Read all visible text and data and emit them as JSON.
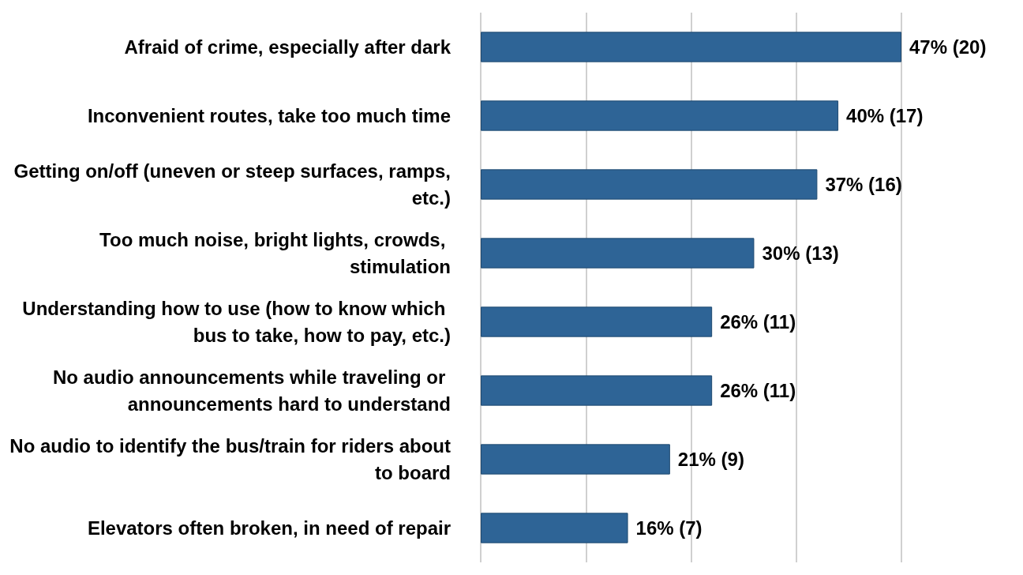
{
  "chart_data": {
    "type": "bar",
    "orientation": "horizontal",
    "categories": [
      "Afraid of crime, especially after dark",
      "Inconvenient routes, take too much time",
      "Getting on/off (uneven or steep surfaces, ramps, etc.)",
      "Too much noise, bright lights, crowds, stimulation",
      "Understanding how to use (how to know which bus to take, how to pay, etc.)",
      "No audio announcements while traveling or announcements hard to understand",
      "No audio to identify the bus/train for riders about to board",
      "Elevators often broken, in need of repair"
    ],
    "values": [
      20,
      17,
      16,
      13,
      11,
      11,
      9,
      7
    ],
    "value_labels": [
      "47% (20)",
      "40% (17)",
      "37% (16)",
      "30% (13)",
      "26% (11)",
      "26% (11)",
      "21% (9)",
      "16% (7)"
    ],
    "color": "#2e6496",
    "xlim": [
      0,
      20
    ],
    "xticks": [
      {
        "value": 0,
        "label": null
      },
      {
        "value": 5,
        "label": null
      },
      {
        "value": 10,
        "label": null
      },
      {
        "value": 15,
        "label": null
      },
      {
        "value": 20,
        "label": null
      }
    ],
    "tick_labels": "y",
    "grid": "x"
  }
}
